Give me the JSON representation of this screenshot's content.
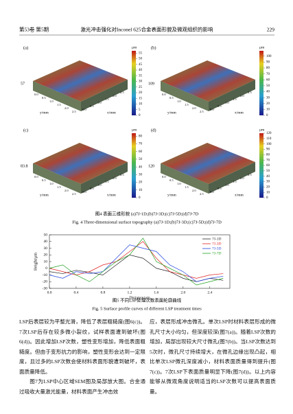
{
  "header": {
    "volume": "第53卷 第5期",
    "title": "激光冲击强化对Inconel 625合金表面形貌及微观组织的影响",
    "page": "229"
  },
  "figure4": {
    "x_label": "x/mm",
    "y_label": "y/mm",
    "axis_ticks": [
      "0.0",
      "0.5",
      "1.0",
      "1.5",
      "2.0",
      "2.5"
    ],
    "panels": [
      {
        "label": "(a)",
        "unit": "μm",
        "z_max": "57",
        "ticks": [
          0,
          5,
          10,
          15,
          20,
          25,
          30,
          35,
          40,
          45,
          50,
          55
        ],
        "lim": [
          0,
          57
        ]
      },
      {
        "label": "(b)",
        "unit": "μm",
        "z_max": "109",
        "ticks": [
          0,
          10,
          20,
          30,
          40,
          50,
          60,
          70,
          80,
          90,
          100
        ],
        "lim": [
          0,
          109
        ]
      },
      {
        "label": "(c)",
        "unit": "μm",
        "z_max": "83.8",
        "ticks": [
          0,
          10,
          20,
          30,
          40,
          50,
          60,
          70,
          80
        ],
        "lim": [
          0,
          83.8
        ]
      },
      {
        "label": "(d)",
        "unit": "μm",
        "z_max": "120",
        "ticks": [
          0,
          10,
          20,
          30,
          40,
          50,
          60,
          70,
          80,
          90,
          100,
          110,
          120
        ],
        "lim": [
          0,
          120
        ]
      }
    ],
    "caption_cn": "图4 表面三维形貌 (a)7J-1D;(b)7J-3D;(c)7J-5D;(d)7J-7D",
    "caption_en": "Fig. 4 Three-dimensional surface topography (a)7J-1D;(b)7J-3D;(c)7J-5D;(d)7J-7D"
  },
  "figure5": {
    "chart_data": {
      "type": "line",
      "x_label": "Distance/μm",
      "y_label": "Height/μm",
      "x": [
        0,
        0.2,
        0.4,
        0.6,
        0.8,
        1.0,
        1.2,
        1.4,
        1.6,
        1.8,
        2.0,
        2.2,
        2.4,
        2.6
      ],
      "series": [
        {
          "name": "7J-1D",
          "color": "#222222",
          "values": [
            -5,
            -8,
            -3,
            -6,
            -10,
            5,
            20,
            15,
            0,
            -5,
            -15,
            -20,
            -15,
            -18
          ]
        },
        {
          "name": "7J-3D",
          "color": "#e02020",
          "values": [
            0,
            -5,
            -10,
            -5,
            5,
            10,
            25,
            40,
            15,
            -5,
            -10,
            -15,
            -10,
            -8
          ]
        },
        {
          "name": "7J-5D",
          "color": "#2040e0",
          "values": [
            -10,
            -15,
            -5,
            -8,
            -5,
            15,
            35,
            30,
            25,
            5,
            -5,
            -20,
            -15,
            -12
          ]
        },
        {
          "name": "7J-7D",
          "color": "#20a020",
          "values": [
            0,
            5,
            -10,
            -20,
            -5,
            10,
            20,
            45,
            10,
            0,
            -10,
            -25,
            -20,
            -15
          ]
        }
      ],
      "xlim": [
        0,
        2.7
      ],
      "ylim": [
        -30,
        50
      ],
      "xticks": [
        {
          "value": 0,
          "label": "0.0"
        },
        0.4,
        0.8,
        1.2,
        1.6,
        {
          "value": 2,
          "label": "2.0"
        },
        2.4
      ],
      "yticks": [
        -30,
        -20,
        -10,
        0,
        10,
        20,
        30,
        40,
        50
      ]
    },
    "caption_cn": "图5 不同LSP处理次数表面轮廓曲线",
    "caption_en": "Fig. 5 Surface profile curves of different LSP treatment times"
  },
  "body": {
    "left": [
      "LSP后表层较为平整光滑，降低了表层粗糙度(图6(c))。7次LSP后存在较多微小裂纹，试样表面遭到破坏(图6(d))。因此增加LSP次数，塑性变形增加，降低表面粗糙度。但由于变形抗力的影响，塑性变形会达到一定限度，且过多的LSP次数会使材料表面形貌遭到破坏，表面质量降低。",
      "图7为LSP中心区域SEM图及局部放大图。合金通过吸收大量激光能量，材料表面产生冲击效"
    ],
    "right": [
      "应，表层形成冲击微孔。单次LSP时材料表层形成的微孔尺寸大小均匀，但深度较深(图7(a))。随着LSP次数的增加，局部出现较大尺寸微孔(图7(b))。当LSP次数达到5次时，微孔尺寸持续增大，在微孔边缘出现凸起，相比单次LSP微孔深度减小，材料表面质量得到提升(图7(c))。7次LSP下表面质量明显下降(图7(d))。以上内容能够从微观角度说明适当的LSP次数可以提高表面质量。"
    ]
  }
}
